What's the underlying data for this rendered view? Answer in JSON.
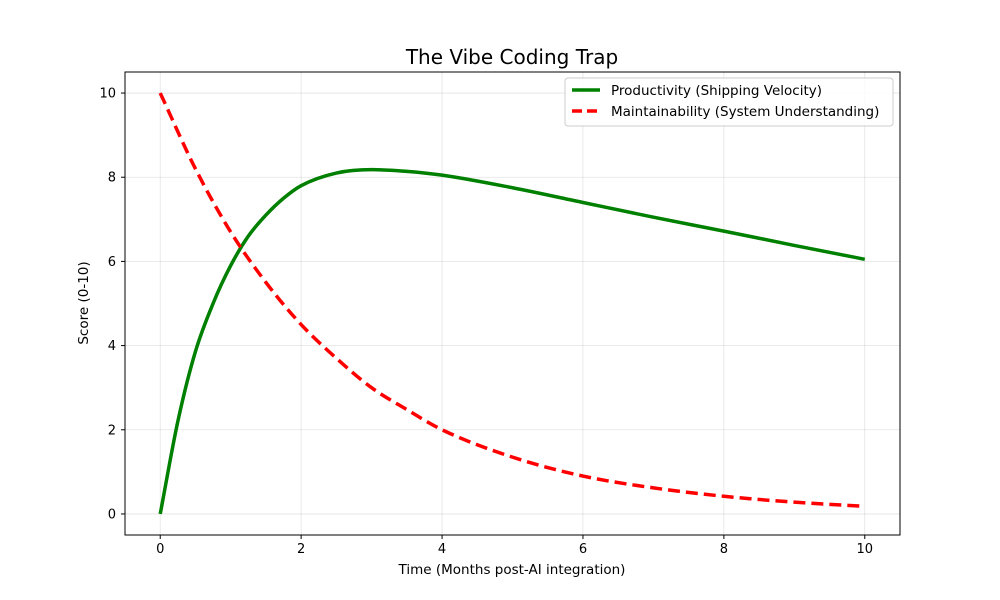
{
  "chart_data": {
    "type": "line",
    "title": "The Vibe Coding Trap",
    "xlabel": "Time (Months post-AI integration)",
    "ylabel": "Score (0-10)",
    "xlim": [
      -0.5,
      10.5
    ],
    "ylim": [
      -0.5,
      10.5
    ],
    "xticks": [
      0,
      2,
      4,
      6,
      8,
      10
    ],
    "yticks": [
      0,
      2,
      4,
      6,
      8,
      10
    ],
    "grid": true,
    "legend_position": "top-right",
    "series": [
      {
        "name": "Productivity (Shipping Velocity)",
        "color": "#008000",
        "style": "solid",
        "x": [
          0,
          0.25,
          0.5,
          0.75,
          1,
          1.25,
          1.5,
          1.75,
          2,
          2.5,
          3,
          3.5,
          4,
          5,
          6,
          7,
          8,
          9,
          10
        ],
        "y": [
          0,
          2.2,
          3.86,
          5.0,
          5.9,
          6.6,
          7.1,
          7.5,
          7.8,
          8.1,
          8.18,
          8.14,
          8.05,
          7.75,
          7.4,
          7.05,
          6.72,
          6.38,
          6.05
        ]
      },
      {
        "name": "Maintainability (System Understanding)",
        "color": "#ff0000",
        "style": "dashed",
        "x": [
          0,
          0.5,
          1,
          1.5,
          2,
          2.5,
          3,
          3.5,
          4,
          5,
          6,
          7,
          8,
          9,
          10
        ],
        "y": [
          10,
          8.2,
          6.7,
          5.5,
          4.5,
          3.7,
          3.0,
          2.48,
          2.0,
          1.35,
          0.9,
          0.62,
          0.42,
          0.28,
          0.18
        ]
      }
    ]
  }
}
